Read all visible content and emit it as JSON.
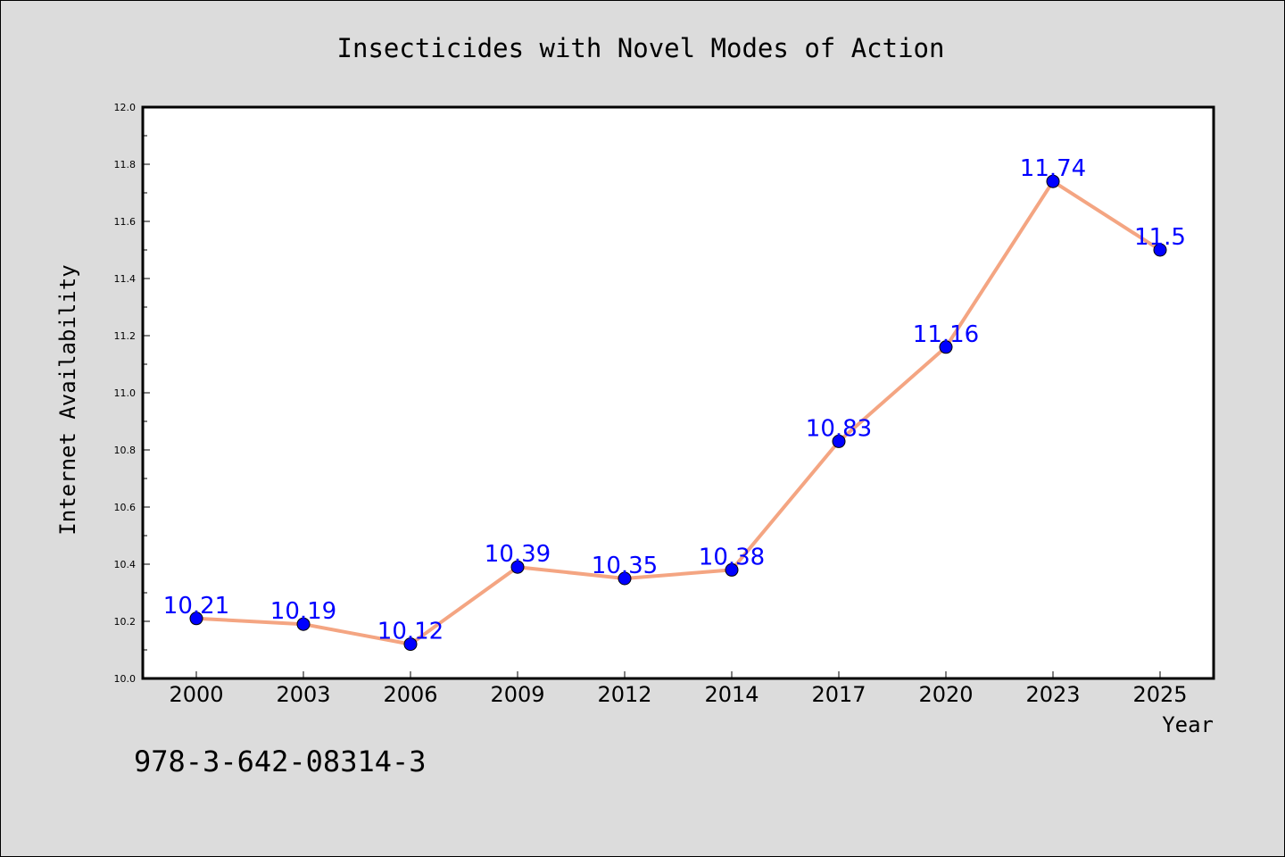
{
  "chart_data": {
    "type": "line",
    "title": "Insecticides with Novel Modes of Action",
    "xlabel": "Year",
    "ylabel": "Internet Availability",
    "categories": [
      "2000",
      "2003",
      "2006",
      "2009",
      "2012",
      "2014",
      "2017",
      "2020",
      "2023",
      "2025"
    ],
    "series": [
      {
        "values": [
          10.21,
          10.19,
          10.12,
          10.39,
          10.35,
          10.38,
          10.83,
          11.16,
          11.74,
          11.5
        ],
        "labels": [
          "10.21",
          "10.19",
          "10.12",
          "10.39",
          "10.35",
          "10.38",
          "10.83",
          "11.16",
          "11.74",
          "11.5"
        ],
        "line_color": "#f4a582",
        "marker_color": "#0000ff"
      }
    ],
    "ylim": [
      10.0,
      12.0
    ],
    "yticks": [
      "10.0",
      "10.2",
      "10.4",
      "10.6",
      "10.8",
      "11.0",
      "11.2",
      "11.4",
      "11.6",
      "11.8",
      "12.0"
    ],
    "grid": false,
    "background": "#dcdcdc",
    "plot_background": "#ffffff"
  },
  "annotation": {
    "text": "978-3-642-08314-3"
  }
}
